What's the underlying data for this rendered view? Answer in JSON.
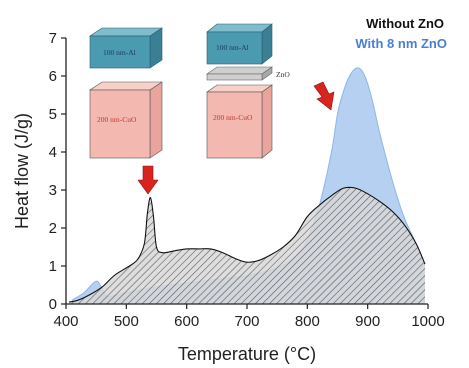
{
  "chart_data": {
    "type": "area",
    "xlabel": "Temperature (°C)",
    "ylabel": "Heat flow (J/g)",
    "xlim": [
      400,
      1000
    ],
    "ylim": [
      0,
      7
    ],
    "xticks": [
      "400",
      "500",
      "600",
      "700",
      "800",
      "900",
      "1000"
    ],
    "yticks": [
      "0",
      "1",
      "2",
      "3",
      "4",
      "5",
      "6",
      "7"
    ],
    "legend_placement": "top-right",
    "series": [
      {
        "name": "Without ZnO",
        "color": "#111111",
        "fill": "hatched gray",
        "x": [
          405,
          420,
          440,
          460,
          480,
          500,
          510,
          520,
          530,
          535,
          540,
          545,
          550,
          560,
          580,
          600,
          620,
          640,
          660,
          680,
          700,
          720,
          740,
          760,
          780,
          800,
          820,
          840,
          860,
          880,
          900,
          920,
          940,
          960,
          980,
          995
        ],
        "y": [
          0.05,
          0.1,
          0.25,
          0.45,
          0.75,
          0.95,
          1.05,
          1.2,
          1.6,
          2.4,
          2.8,
          2.3,
          1.5,
          1.35,
          1.4,
          1.45,
          1.45,
          1.45,
          1.35,
          1.2,
          1.1,
          1.15,
          1.3,
          1.5,
          1.8,
          2.3,
          2.6,
          2.85,
          3.05,
          3.05,
          2.9,
          2.7,
          2.45,
          2.1,
          1.6,
          1.05
        ]
      },
      {
        "name": "With 8 nm ZnO",
        "color": "#4a90e2",
        "fill": "light blue",
        "x": [
          410,
          430,
          450,
          460,
          470,
          500,
          550,
          600,
          650,
          700,
          750,
          780,
          800,
          820,
          840,
          850,
          860,
          870,
          880,
          890,
          900,
          910,
          920,
          940,
          960,
          980,
          995
        ],
        "y": [
          0.1,
          0.3,
          0.6,
          0.4,
          0.2,
          0.3,
          0.45,
          0.55,
          0.65,
          0.75,
          0.95,
          1.25,
          1.7,
          2.6,
          4.0,
          5.0,
          5.6,
          6.0,
          6.2,
          6.15,
          5.8,
          5.2,
          4.5,
          3.3,
          2.3,
          1.6,
          1.05
        ]
      }
    ],
    "annotations": {
      "left_stack": {
        "top": "100 nm-Al",
        "bottom": "200 nm-CuO"
      },
      "right_stack": {
        "top": "100 nm-Al",
        "middle": "ZnO",
        "bottom": "200 nm-CuO"
      }
    }
  },
  "colors": {
    "al_box": "#4a9ab0",
    "cuo_box": "#f3b8b0",
    "zno_layer": "#cfcfcf",
    "arrow": "#d9231f",
    "with_zno_text": "#4a7fd4"
  }
}
